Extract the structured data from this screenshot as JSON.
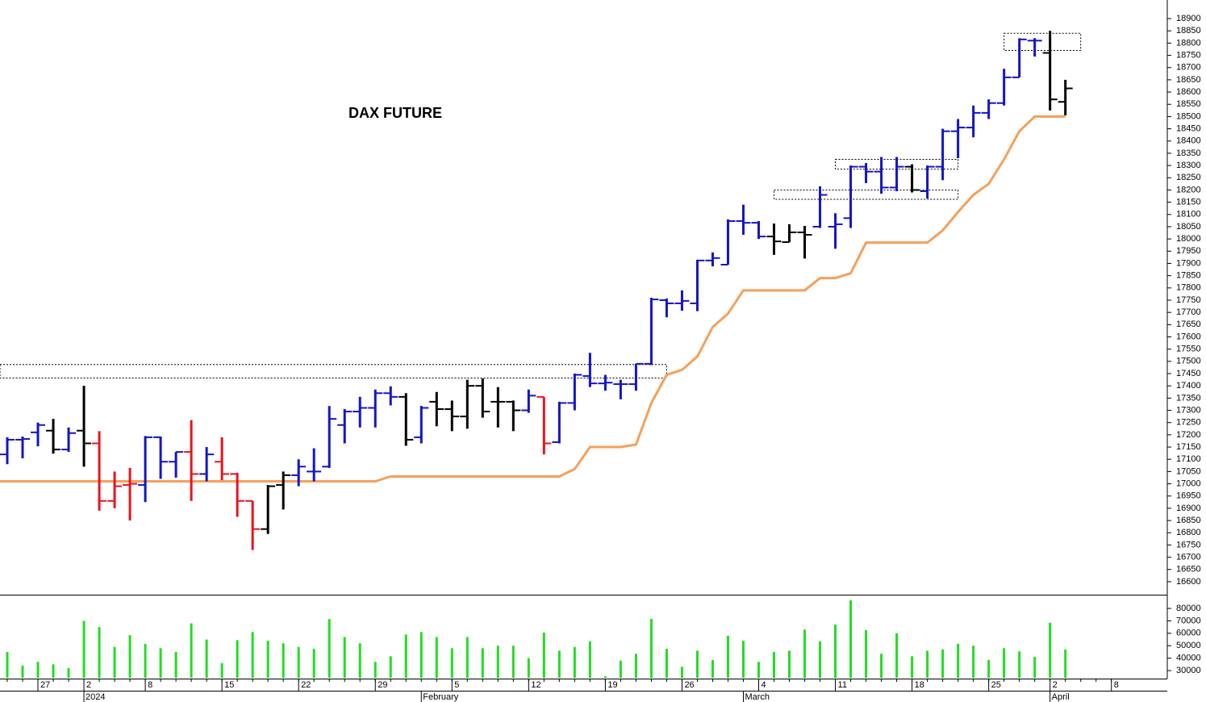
{
  "chart_data": {
    "type": "ohlc",
    "title": "DAX FUTURE",
    "categories": [
      null,
      null,
      "27",
      null,
      null,
      "2",
      null,
      null,
      null,
      "8",
      null,
      null,
      null,
      null,
      "15",
      null,
      null,
      null,
      null,
      "22",
      null,
      null,
      null,
      null,
      "29",
      null,
      null,
      null,
      null,
      "5",
      null,
      null,
      null,
      null,
      "12",
      null,
      null,
      null,
      null,
      "19",
      null,
      null,
      null,
      null,
      "26",
      null,
      null,
      null,
      null,
      "4",
      null,
      null,
      null,
      null,
      "11",
      null,
      null,
      null,
      null,
      "18",
      null,
      null,
      null,
      null,
      "25",
      null,
      null,
      null,
      "2",
      null,
      null,
      null,
      "8"
    ],
    "category_groups": [
      null,
      null,
      null,
      null,
      null,
      "2024",
      null,
      null,
      null,
      null,
      null,
      null,
      null,
      null,
      null,
      null,
      null,
      null,
      null,
      null,
      null,
      null,
      null,
      null,
      null,
      null,
      null,
      "February",
      null,
      null,
      null,
      null,
      null,
      null,
      null,
      null,
      null,
      null,
      null,
      null,
      null,
      null,
      null,
      null,
      null,
      null,
      null,
      null,
      "March",
      null,
      null,
      null,
      null,
      null,
      null,
      null,
      null,
      null,
      null,
      null,
      null,
      null,
      null,
      null,
      null,
      null,
      null,
      null,
      "April",
      null,
      null,
      null,
      null
    ],
    "open": [
      17120,
      17180,
      17210,
      17217,
      17140,
      17217,
      17165,
      16930,
      16995,
      16995,
      17190,
      17090,
      17130,
      17040,
      17090,
      17040,
      16930,
      16815,
      16995,
      17035,
      17050,
      17070,
      17240,
      17295,
      17310,
      17370,
      17355,
      17190,
      17335,
      17305,
      17275,
      17400,
      17335,
      17335,
      17300,
      17355,
      17170,
      17330,
      17440,
      17410,
      17407,
      17407,
      17490,
      17750,
      17737,
      17737,
      17912,
      17895,
      18073,
      18066,
      18010,
      17987,
      18027,
      18050,
      18050,
      18085,
      18295,
      18275,
      18210,
      18295,
      18195,
      18295,
      18440,
      18455,
      18515,
      18555,
      18660,
      18810,
      18760,
      18560,
      null,
      null,
      null
    ],
    "high": [
      17190,
      17193,
      17250,
      17265,
      17230,
      17400,
      17215,
      17050,
      17065,
      17195,
      17193,
      17130,
      17260,
      17150,
      17190,
      17045,
      16930,
      16995,
      17050,
      17100,
      17145,
      17318,
      17305,
      17355,
      17385,
      17398,
      17370,
      17318,
      17375,
      17340,
      17425,
      17430,
      17395,
      17340,
      17385,
      17355,
      17335,
      17450,
      17535,
      17445,
      17425,
      17490,
      17760,
      17757,
      17790,
      17915,
      17945,
      18080,
      18140,
      18073,
      18063,
      18060,
      18053,
      18215,
      18105,
      18300,
      18310,
      18335,
      18335,
      18305,
      18300,
      18450,
      18490,
      18545,
      18570,
      18695,
      18820,
      18820,
      18850,
      18650,
      null,
      null,
      null
    ],
    "low": [
      17080,
      17104,
      17153,
      17123,
      17130,
      17070,
      16890,
      16900,
      16850,
      16925,
      17020,
      17025,
      16930,
      17010,
      17015,
      16865,
      16730,
      16795,
      16895,
      16990,
      17010,
      17065,
      17165,
      17230,
      17230,
      17320,
      17155,
      17165,
      17235,
      17215,
      17225,
      17270,
      17230,
      17215,
      17290,
      17120,
      17165,
      17300,
      17395,
      17380,
      17345,
      17380,
      17485,
      17680,
      17707,
      17705,
      17888,
      17895,
      18017,
      18000,
      17935,
      17987,
      17920,
      18045,
      17960,
      18045,
      18228,
      18185,
      18195,
      18190,
      18165,
      18240,
      18330,
      18415,
      18490,
      18545,
      18660,
      18745,
      18525,
      18505,
      null,
      null,
      null
    ],
    "close": [
      17180,
      17183,
      17240,
      17140,
      17207,
      17165,
      16930,
      16990,
      17000,
      17190,
      17090,
      17130,
      17040,
      17120,
      17040,
      16930,
      16815,
      16990,
      17035,
      17070,
      17050,
      17265,
      17295,
      17310,
      17370,
      17355,
      17180,
      17310,
      17305,
      17275,
      17400,
      17295,
      17335,
      17300,
      17360,
      17165,
      17330,
      17445,
      17410,
      17413,
      17407,
      17490,
      17753,
      17737,
      17747,
      17912,
      17922,
      18073,
      18066,
      18010,
      17990,
      18027,
      18017,
      18180,
      18060,
      18295,
      18275,
      18210,
      18295,
      18200,
      18295,
      18440,
      18455,
      18515,
      18555,
      18660,
      18815,
      18810,
      18570,
      18615,
      null,
      null,
      null
    ],
    "colors": [
      "#1414c8",
      "#1414c8",
      "#1414c8",
      "#000000",
      "#1414c8",
      "#000000",
      "#e8141e",
      "#e8141e",
      "#e8141e",
      "#1414c8",
      "#1414c8",
      "#1414c8",
      "#e8141e",
      "#1414c8",
      "#e8141e",
      "#e8141e",
      "#e8141e",
      "#000000",
      "#000000",
      "#1414c8",
      "#1414c8",
      "#1414c8",
      "#1414c8",
      "#1414c8",
      "#1414c8",
      "#1414c8",
      "#000000",
      "#1414c8",
      "#000000",
      "#000000",
      "#000000",
      "#000000",
      "#000000",
      "#000000",
      "#1414c8",
      "#e8141e",
      "#1414c8",
      "#1414c8",
      "#1414c8",
      "#1414c8",
      "#1414c8",
      "#1414c8",
      "#1414c8",
      "#1414c8",
      "#1414c8",
      "#1414c8",
      "#1414c8",
      "#1414c8",
      "#1414c8",
      "#1414c8",
      "#000000",
      "#000000",
      "#000000",
      "#1414c8",
      "#1414c8",
      "#1414c8",
      "#1414c8",
      "#1414c8",
      "#1414c8",
      "#000000",
      "#1414c8",
      "#1414c8",
      "#1414c8",
      "#1414c8",
      "#1414c8",
      "#1414c8",
      "#1414c8",
      "#1414c8",
      "#000000",
      "#000000",
      null,
      null,
      null
    ],
    "ylim": [
      16547,
      18976
    ],
    "yticks": [
      16600,
      16650,
      16700,
      16750,
      16800,
      16850,
      16900,
      16950,
      17000,
      17050,
      17100,
      17150,
      17200,
      17250,
      17300,
      17350,
      17400,
      17450,
      17500,
      17550,
      17600,
      17650,
      17700,
      17750,
      17800,
      17850,
      17900,
      17950,
      18000,
      18050,
      18100,
      18150,
      18200,
      18250,
      18300,
      18350,
      18400,
      18450,
      18500,
      18550,
      18600,
      18650,
      18700,
      18750,
      18800,
      18850,
      18900
    ],
    "stop": {
      "color": "#f5a05a",
      "values": [
        17010,
        17010,
        17010,
        17010,
        17010,
        17010,
        17010,
        17010,
        17010,
        17010,
        17010,
        17010,
        17010,
        17010,
        17010,
        17010,
        17010,
        17010,
        17010,
        17010,
        17010,
        17010,
        17010,
        17010,
        17010,
        17030,
        17030,
        17030,
        17030,
        17030,
        17030,
        17030,
        17030,
        17030,
        17030,
        17030,
        17030,
        17060,
        17150,
        17150,
        17150,
        17160,
        17330,
        17445,
        17465,
        17520,
        17640,
        17695,
        17790,
        17790,
        17790,
        17790,
        17790,
        17840,
        17840,
        17860,
        17985,
        17985,
        17985,
        17985,
        17985,
        18035,
        18110,
        18180,
        18225,
        18325,
        18440,
        18500,
        18500,
        18500,
        null,
        null,
        null
      ]
    },
    "zones": [
      {
        "x": [
          0,
          43
        ],
        "y": [
          17432,
          17487
        ]
      },
      {
        "x": [
          50,
          62
        ],
        "y": [
          18162,
          18200
        ]
      },
      {
        "x": [
          54,
          62
        ],
        "y": [
          18285,
          18325
        ]
      },
      {
        "x": [
          65,
          70
        ],
        "y": [
          18770,
          18840
        ]
      }
    ],
    "volume": {
      "color": "#22dd22",
      "ylim": [
        24200,
        90400
      ],
      "yticks": [
        30000,
        40000,
        50000,
        60000,
        70000,
        80000
      ],
      "values": [
        45000,
        34000,
        37000,
        35000,
        32000,
        70000,
        65000,
        49000,
        58500,
        51500,
        48000,
        45000,
        68000,
        55000,
        36000,
        54500,
        61000,
        54000,
        52000,
        49000,
        47500,
        71500,
        57000,
        52000,
        37000,
        41500,
        59000,
        61000,
        57000,
        48000,
        57000,
        48000,
        50000,
        50000,
        40000,
        60500,
        46000,
        49000,
        53500,
        25500,
        38000,
        43500,
        71500,
        47500,
        33000,
        46000,
        38500,
        58000,
        54000,
        37000,
        45000,
        46000,
        63000,
        53500,
        67000,
        86500,
        62500,
        43500,
        60000,
        41500,
        46000,
        47000,
        51500,
        50000,
        38500,
        48000,
        45500,
        41000,
        68500,
        47000,
        null,
        null,
        null
      ]
    }
  }
}
